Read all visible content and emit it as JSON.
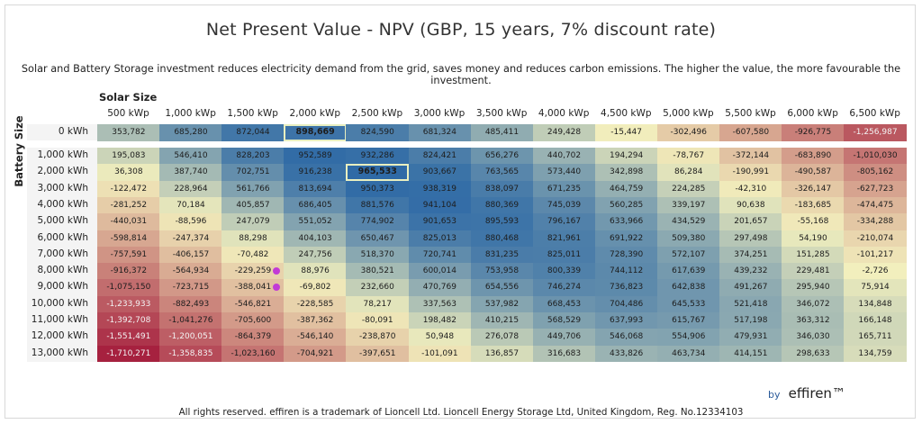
{
  "title": "Net Present Value - NPV (GBP, 15 years, 7% discount rate)",
  "subtitle": "Solar and Battery Storage investment reduces electricity demand from the grid, saves money and reduces carbon emissions. The higher the value, the more favourable the investment.",
  "footer": "All rights reserved. effiren is a trademark of Lioncell Ltd. Lioncell Energy Storage Ltd, United Kingdom, Reg. No.12334103",
  "brand": {
    "by": "by",
    "name": "effiren™"
  },
  "colors": {
    "low": "#a6213f",
    "mid": "#f2efbd",
    "high": "#2f6aa6"
  },
  "chart_data": {
    "type": "heatmap",
    "xlabel": "Solar Size",
    "ylabel": "Battery Size",
    "x_labels": [
      "500 kWp",
      "1,000 kWp",
      "1,500 kWp",
      "2,000 kWp",
      "2,500 kWp",
      "3,000 kWp",
      "3,500 kWp",
      "4,000 kWp",
      "4,500 kWp",
      "5,000 kWp",
      "5,500 kWp",
      "6,000 kWp",
      "6,500 kWp"
    ],
    "y_labels": [
      "0 kWh",
      "1,000 kWh",
      "2,000 kWh",
      "3,000 kWh",
      "4,000 kWh",
      "5,000 kWh",
      "6,000 kWh",
      "7,000 kWh",
      "8,000 kWh",
      "9,000 kWh",
      "10,000 kWh",
      "11,000 kWh",
      "12,000 kWh",
      "13,000 kWh"
    ],
    "values": [
      [
        353782,
        685280,
        872044,
        898669,
        824590,
        681324,
        485411,
        249428,
        -15447,
        -302496,
        -607580,
        -926775,
        -1256987
      ],
      [
        195083,
        546410,
        828203,
        952589,
        932286,
        824421,
        656276,
        440702,
        194294,
        -78767,
        -372144,
        -683890,
        -1010030
      ],
      [
        36308,
        387740,
        702751,
        916238,
        965533,
        903667,
        763565,
        573440,
        342898,
        86284,
        -190991,
        -490587,
        -805162
      ],
      [
        -122472,
        228964,
        561766,
        813694,
        950373,
        938319,
        838097,
        671235,
        464759,
        224285,
        -42310,
        -326147,
        -627723
      ],
      [
        -281252,
        70184,
        405857,
        686405,
        881576,
        941104,
        880369,
        745039,
        560285,
        339197,
        90638,
        -183685,
        -474475
      ],
      [
        -440031,
        -88596,
        247079,
        551052,
        774902,
        901653,
        895593,
        796167,
        633966,
        434529,
        201657,
        -55168,
        -334288
      ],
      [
        -598814,
        -247374,
        88298,
        404103,
        650467,
        825013,
        880468,
        821961,
        691922,
        509380,
        297498,
        54190,
        -210074
      ],
      [
        -757591,
        -406157,
        -70482,
        247756,
        518370,
        720741,
        831235,
        825011,
        728390,
        572107,
        374251,
        151285,
        -101217
      ],
      [
        -916372,
        -564934,
        -229259,
        88976,
        380521,
        600014,
        753958,
        800339,
        744112,
        617639,
        439232,
        229481,
        -2726
      ],
      [
        -1075150,
        -723715,
        -388041,
        -69802,
        232660,
        470769,
        654556,
        746274,
        736823,
        642838,
        491267,
        295940,
        75914
      ],
      [
        -1233933,
        -882493,
        -546821,
        -228585,
        78217,
        337563,
        537982,
        668453,
        704486,
        645533,
        521418,
        346072,
        134848
      ],
      [
        -1392708,
        -1041276,
        -705600,
        -387362,
        -80091,
        198482,
        410215,
        568529,
        637993,
        615767,
        517198,
        363312,
        166148
      ],
      [
        -1551491,
        -1200051,
        -864379,
        -546140,
        -238870,
        50948,
        276078,
        449706,
        546068,
        554906,
        479931,
        346030,
        165711
      ],
      [
        -1710271,
        -1358835,
        -1023160,
        -704921,
        -397651,
        -101091,
        136857,
        316683,
        433826,
        463734,
        414151,
        298633,
        134759
      ]
    ],
    "highlighted_cells": [
      {
        "row": 0,
        "col": 3,
        "value": 898669
      },
      {
        "row": 2,
        "col": 4,
        "value": 965533
      }
    ],
    "markers": [
      {
        "row": 8,
        "col": 2
      },
      {
        "row": 9,
        "col": 2
      }
    ],
    "color_scale": "diverging red-yellow-blue",
    "value_range": [
      -1710271,
      965533
    ]
  }
}
